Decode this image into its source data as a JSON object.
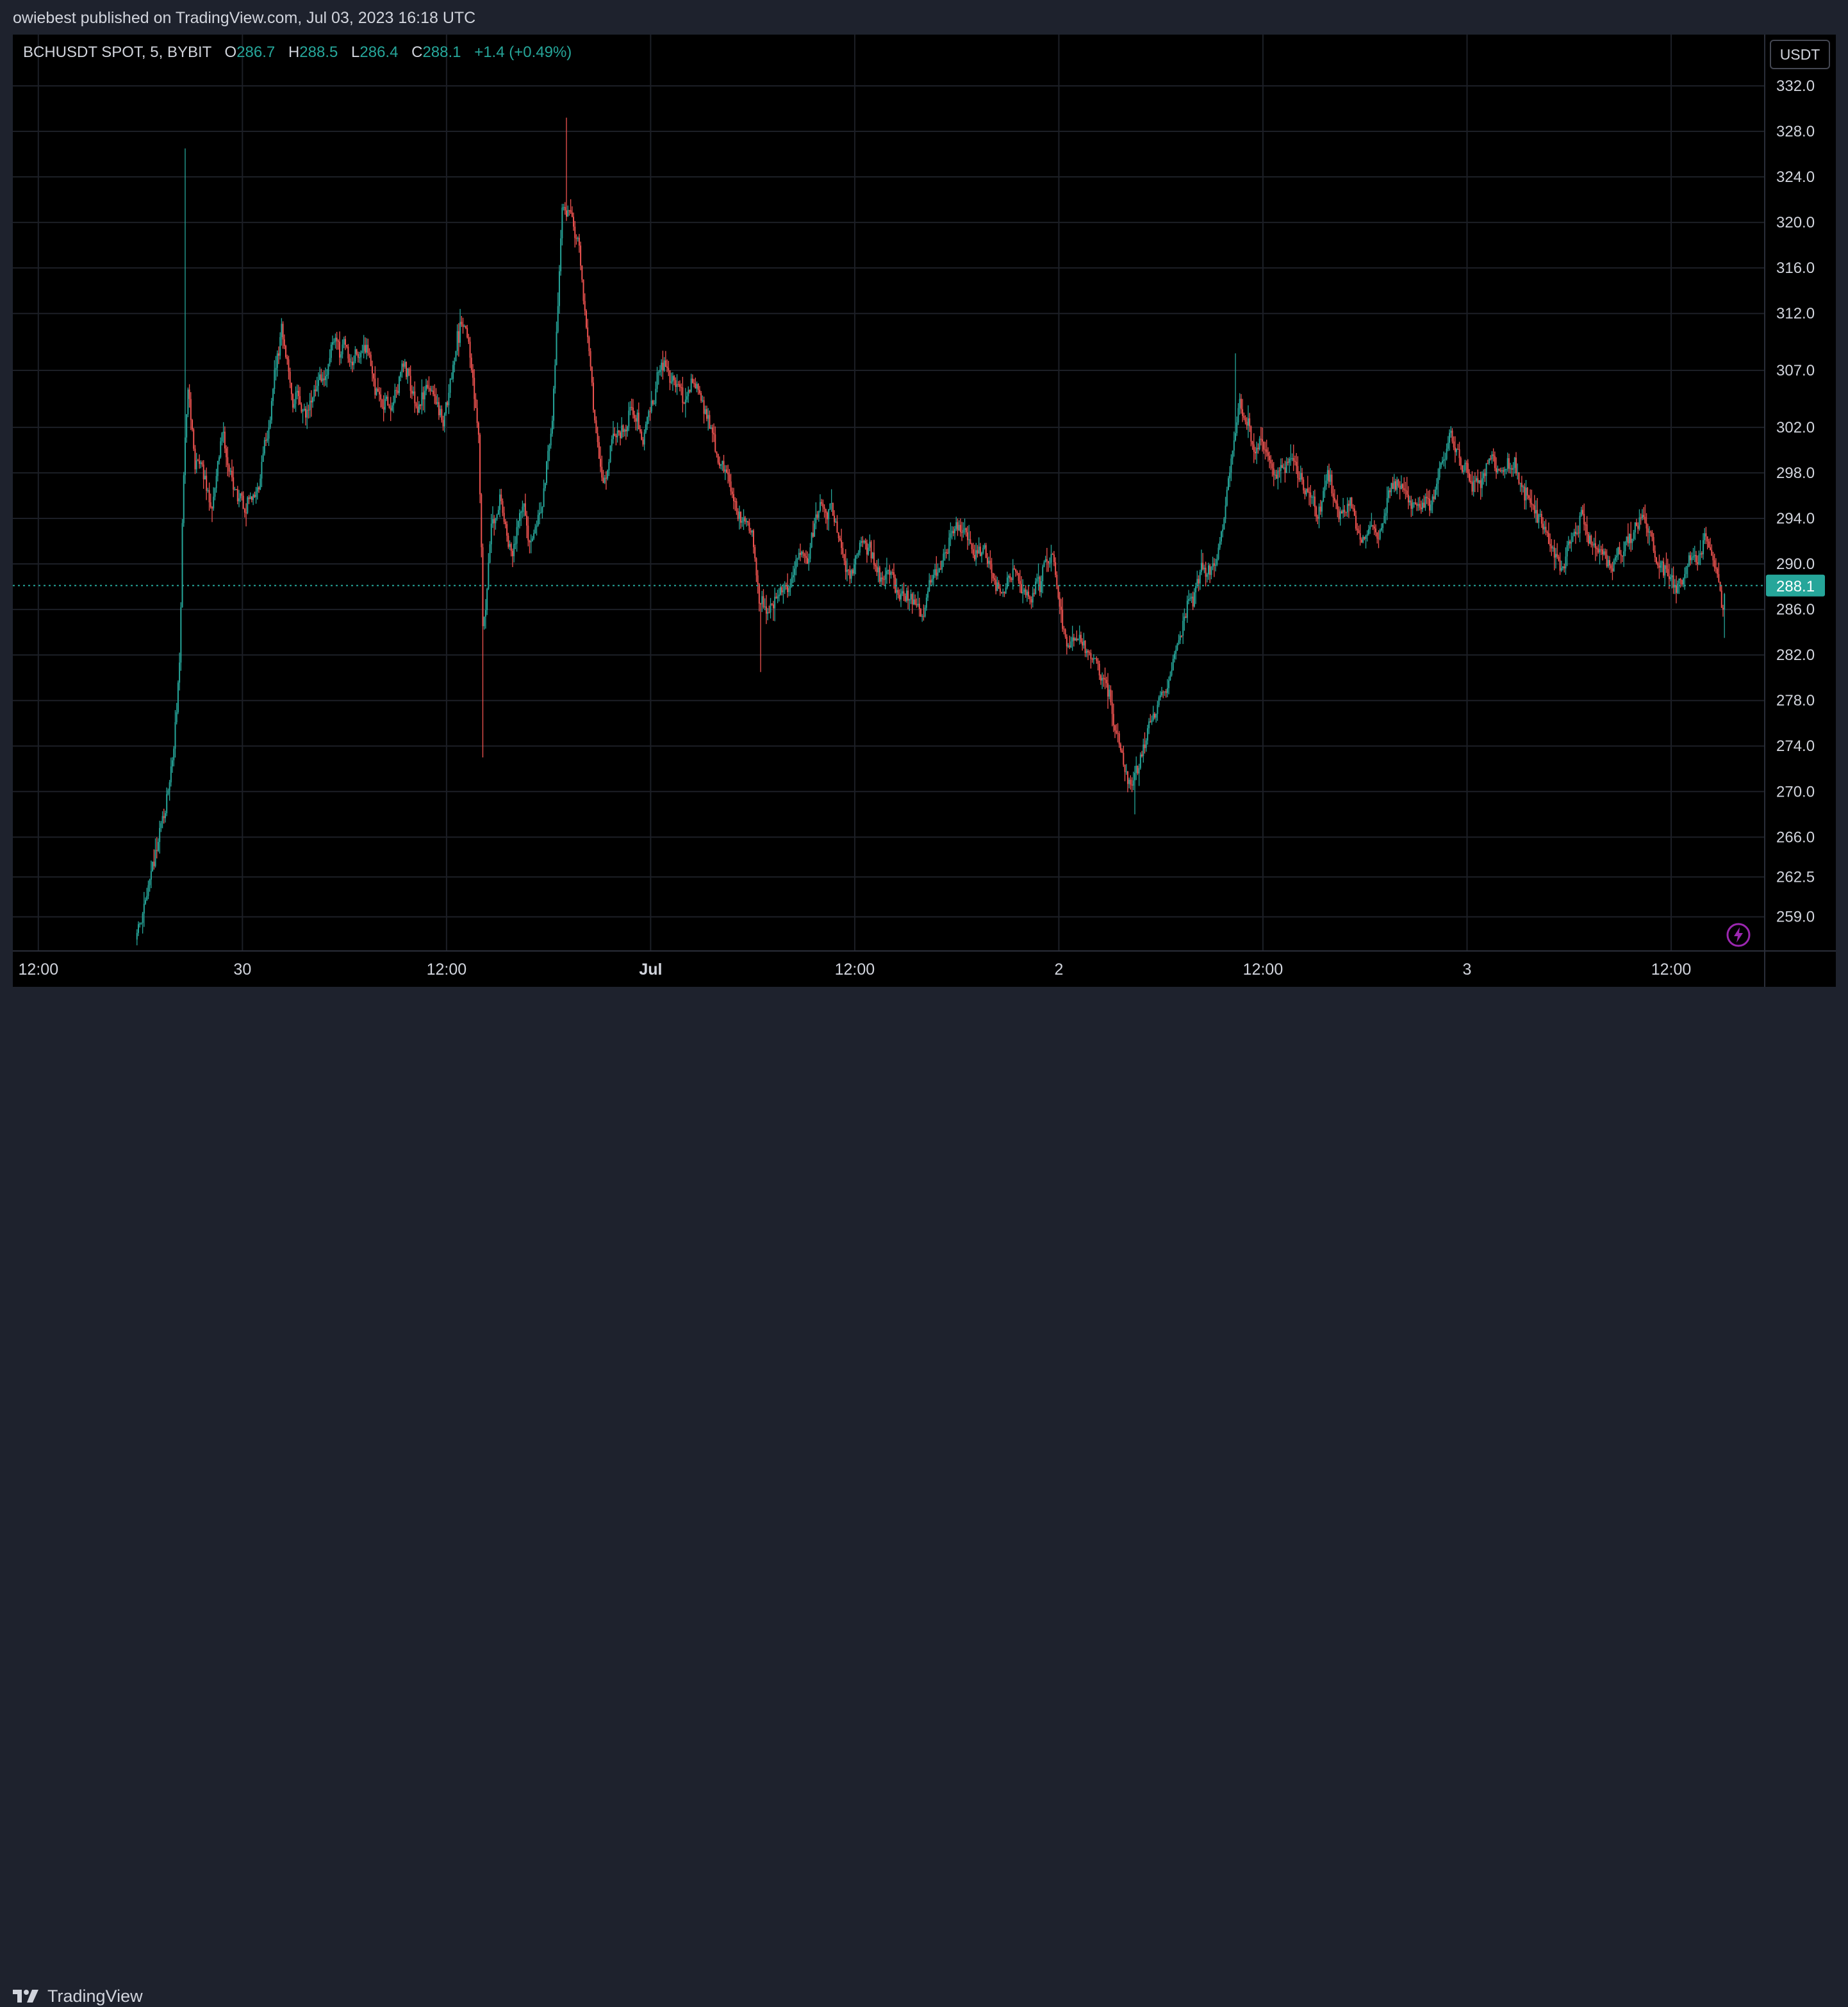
{
  "header": {
    "published": "owiebest published on TradingView.com, Jul 03, 2023 16:18 UTC"
  },
  "legend": {
    "symbol": "BCHUSDT SPOT, 5, BYBIT",
    "open_label": "O",
    "open": "286.7",
    "high_label": "H",
    "high": "288.5",
    "low_label": "L",
    "low": "286.4",
    "close_label": "C",
    "close": "288.1",
    "change": "+1.4 (+0.49%)"
  },
  "currency": "USDT",
  "footer": {
    "brand": "TradingView"
  },
  "colors": {
    "up": "#26a69a",
    "down": "#ef5350",
    "background": "#000000",
    "frame": "#1e222d",
    "grid": "#1c1f26",
    "text": "#d1d4dc"
  },
  "icons": {
    "logo": "tradingview-logo-icon",
    "flash": "lightning-icon"
  },
  "chart_data": {
    "type": "candlestick",
    "symbol": "BCHUSDT",
    "timeframe": "5",
    "exchange": "BYBIT",
    "last_price": "288.1",
    "last_price_value": 288.1,
    "y_ticks": [
      "332.0",
      "328.0",
      "324.0",
      "320.0",
      "316.0",
      "312.0",
      "307.0",
      "302.0",
      "298.0",
      "294.0",
      "290.0",
      "286.0",
      "282.0",
      "278.0",
      "274.0",
      "270.0",
      "266.0",
      "262.5",
      "259.0"
    ],
    "y_tick_values": [
      332.0,
      328.0,
      324.0,
      320.0,
      316.0,
      312.0,
      307.0,
      302.0,
      298.0,
      294.0,
      290.0,
      286.0,
      282.0,
      278.0,
      274.0,
      270.0,
      266.0,
      262.5,
      259.0
    ],
    "x_ticks": [
      {
        "label": "12:00",
        "t": 0.0,
        "bold": false
      },
      {
        "label": "30",
        "t": 12.0,
        "bold": false
      },
      {
        "label": "12:00",
        "t": 24.0,
        "bold": false
      },
      {
        "label": "Jul",
        "t": 36.0,
        "bold": true
      },
      {
        "label": "12:00",
        "t": 48.0,
        "bold": false
      },
      {
        "label": "2",
        "t": 60.0,
        "bold": false
      },
      {
        "label": "12:00",
        "t": 72.0,
        "bold": false
      },
      {
        "label": "3",
        "t": 84.0,
        "bold": false
      },
      {
        "label": "12:00",
        "t": 96.0,
        "bold": false
      }
    ],
    "x_range_hours": [
      -1.5,
      101.5
    ],
    "y_range": [
      256.0,
      336.5
    ],
    "path": [
      {
        "t": 5.8,
        "p": 257.0
      },
      {
        "t": 6.1,
        "p": 258.5
      },
      {
        "t": 6.5,
        "p": 261.5
      },
      {
        "t": 7.0,
        "p": 264.5
      },
      {
        "t": 7.4,
        "p": 267.0
      },
      {
        "t": 7.8,
        "p": 271.5
      },
      {
        "t": 8.1,
        "p": 276.5
      },
      {
        "t": 8.35,
        "p": 283.0
      },
      {
        "t": 8.5,
        "p": 296.0
      },
      {
        "t": 8.8,
        "p": 304.5
      },
      {
        "t": 9.2,
        "p": 298.5
      },
      {
        "t": 9.6,
        "p": 300.0
      },
      {
        "t": 10.2,
        "p": 296.5
      },
      {
        "t": 10.8,
        "p": 301.5
      },
      {
        "t": 11.5,
        "p": 298.0
      },
      {
        "t": 12.2,
        "p": 296.0
      },
      {
        "t": 13.0,
        "p": 298.5
      },
      {
        "t": 13.6,
        "p": 304.0
      },
      {
        "t": 14.3,
        "p": 311.5
      },
      {
        "t": 15.0,
        "p": 305.0
      },
      {
        "t": 15.8,
        "p": 303.0
      },
      {
        "t": 16.8,
        "p": 306.0
      },
      {
        "t": 17.5,
        "p": 310.0
      },
      {
        "t": 18.3,
        "p": 307.0
      },
      {
        "t": 19.0,
        "p": 309.0
      },
      {
        "t": 19.8,
        "p": 305.0
      },
      {
        "t": 20.6,
        "p": 303.5
      },
      {
        "t": 21.5,
        "p": 307.0
      },
      {
        "t": 22.3,
        "p": 304.5
      },
      {
        "t": 23.0,
        "p": 306.0
      },
      {
        "t": 23.8,
        "p": 303.0
      },
      {
        "t": 24.5,
        "p": 307.5
      },
      {
        "t": 25.0,
        "p": 310.5
      },
      {
        "t": 25.5,
        "p": 306.5
      },
      {
        "t": 25.9,
        "p": 301.0
      },
      {
        "t": 26.15,
        "p": 284.0
      },
      {
        "t": 26.6,
        "p": 293.0
      },
      {
        "t": 27.2,
        "p": 295.5
      },
      {
        "t": 27.8,
        "p": 292.0
      },
      {
        "t": 28.4,
        "p": 296.0
      },
      {
        "t": 29.0,
        "p": 292.5
      },
      {
        "t": 29.6,
        "p": 295.0
      },
      {
        "t": 30.2,
        "p": 303.0
      },
      {
        "t": 30.8,
        "p": 322.5
      },
      {
        "t": 31.3,
        "p": 320.0
      },
      {
        "t": 31.8,
        "p": 317.0
      },
      {
        "t": 32.3,
        "p": 309.0
      },
      {
        "t": 32.8,
        "p": 300.0
      },
      {
        "t": 33.2,
        "p": 296.0
      },
      {
        "t": 33.7,
        "p": 300.5
      },
      {
        "t": 34.3,
        "p": 301.5
      },
      {
        "t": 34.9,
        "p": 303.0
      },
      {
        "t": 35.5,
        "p": 301.0
      },
      {
        "t": 36.1,
        "p": 305.0
      },
      {
        "t": 36.7,
        "p": 308.5
      },
      {
        "t": 37.3,
        "p": 307.0
      },
      {
        "t": 37.9,
        "p": 305.5
      },
      {
        "t": 38.5,
        "p": 306.0
      },
      {
        "t": 39.1,
        "p": 304.0
      },
      {
        "t": 39.7,
        "p": 301.5
      },
      {
        "t": 40.3,
        "p": 298.0
      },
      {
        "t": 40.9,
        "p": 296.0
      },
      {
        "t": 41.5,
        "p": 294.0
      },
      {
        "t": 42.0,
        "p": 293.0
      },
      {
        "t": 42.4,
        "p": 286.0
      },
      {
        "t": 42.9,
        "p": 284.5
      },
      {
        "t": 43.5,
        "p": 286.5
      },
      {
        "t": 44.1,
        "p": 287.5
      },
      {
        "t": 44.7,
        "p": 290.0
      },
      {
        "t": 45.3,
        "p": 289.5
      },
      {
        "t": 45.9,
        "p": 294.5
      },
      {
        "t": 46.5,
        "p": 295.0
      },
      {
        "t": 47.1,
        "p": 293.5
      },
      {
        "t": 47.7,
        "p": 290.0
      },
      {
        "t": 48.3,
        "p": 291.5
      },
      {
        "t": 48.9,
        "p": 292.5
      },
      {
        "t": 49.5,
        "p": 289.0
      },
      {
        "t": 50.1,
        "p": 288.0
      },
      {
        "t": 50.7,
        "p": 286.5
      },
      {
        "t": 51.3,
        "p": 287.5
      },
      {
        "t": 51.9,
        "p": 286.5
      },
      {
        "t": 52.5,
        "p": 289.0
      },
      {
        "t": 53.1,
        "p": 288.5
      },
      {
        "t": 53.7,
        "p": 291.5
      },
      {
        "t": 54.3,
        "p": 292.0
      },
      {
        "t": 54.9,
        "p": 291.0
      },
      {
        "t": 55.5,
        "p": 290.5
      },
      {
        "t": 56.1,
        "p": 289.5
      },
      {
        "t": 56.7,
        "p": 289.0
      },
      {
        "t": 57.3,
        "p": 290.0
      },
      {
        "t": 57.9,
        "p": 289.0
      },
      {
        "t": 58.5,
        "p": 288.5
      },
      {
        "t": 59.1,
        "p": 290.0
      },
      {
        "t": 59.7,
        "p": 291.0
      },
      {
        "t": 60.1,
        "p": 287.0
      },
      {
        "t": 60.5,
        "p": 283.5
      },
      {
        "t": 61.0,
        "p": 285.0
      },
      {
        "t": 61.6,
        "p": 283.5
      },
      {
        "t": 62.2,
        "p": 281.0
      },
      {
        "t": 62.8,
        "p": 279.5
      },
      {
        "t": 63.4,
        "p": 275.5
      },
      {
        "t": 63.9,
        "p": 272.5
      },
      {
        "t": 64.3,
        "p": 271.0
      },
      {
        "t": 64.8,
        "p": 272.5
      },
      {
        "t": 65.4,
        "p": 275.5
      },
      {
        "t": 66.0,
        "p": 277.5
      },
      {
        "t": 66.6,
        "p": 281.0
      },
      {
        "t": 67.2,
        "p": 284.5
      },
      {
        "t": 67.8,
        "p": 287.5
      },
      {
        "t": 68.4,
        "p": 289.0
      },
      {
        "t": 69.0,
        "p": 288.5
      },
      {
        "t": 69.6,
        "p": 291.5
      },
      {
        "t": 70.1,
        "p": 297.5
      },
      {
        "t": 70.6,
        "p": 304.0
      },
      {
        "t": 71.1,
        "p": 302.5
      },
      {
        "t": 71.6,
        "p": 299.5
      },
      {
        "t": 72.2,
        "p": 301.0
      },
      {
        "t": 72.8,
        "p": 299.0
      },
      {
        "t": 73.4,
        "p": 300.0
      },
      {
        "t": 74.0,
        "p": 298.5
      },
      {
        "t": 74.6,
        "p": 297.0
      },
      {
        "t": 75.2,
        "p": 294.5
      },
      {
        "t": 75.8,
        "p": 297.0
      },
      {
        "t": 76.4,
        "p": 294.0
      },
      {
        "t": 77.0,
        "p": 295.5
      },
      {
        "t": 77.6,
        "p": 292.5
      },
      {
        "t": 78.2,
        "p": 293.0
      },
      {
        "t": 78.8,
        "p": 292.0
      },
      {
        "t": 79.4,
        "p": 295.5
      },
      {
        "t": 80.0,
        "p": 296.0
      },
      {
        "t": 80.6,
        "p": 294.5
      },
      {
        "t": 81.2,
        "p": 294.0
      },
      {
        "t": 81.8,
        "p": 295.0
      },
      {
        "t": 82.4,
        "p": 298.0
      },
      {
        "t": 83.0,
        "p": 300.5
      },
      {
        "t": 83.6,
        "p": 298.5
      },
      {
        "t": 84.2,
        "p": 297.0
      },
      {
        "t": 84.8,
        "p": 296.5
      },
      {
        "t": 85.4,
        "p": 300.0
      },
      {
        "t": 86.0,
        "p": 299.5
      },
      {
        "t": 86.6,
        "p": 298.5
      },
      {
        "t": 87.2,
        "p": 297.5
      },
      {
        "t": 87.8,
        "p": 296.5
      },
      {
        "t": 88.4,
        "p": 295.5
      },
      {
        "t": 89.0,
        "p": 293.5
      },
      {
        "t": 89.6,
        "p": 291.5
      },
      {
        "t": 90.2,
        "p": 292.5
      },
      {
        "t": 90.8,
        "p": 294.5
      },
      {
        "t": 91.4,
        "p": 292.0
      },
      {
        "t": 92.0,
        "p": 291.0
      },
      {
        "t": 92.6,
        "p": 289.5
      },
      {
        "t": 93.2,
        "p": 290.5
      },
      {
        "t": 93.8,
        "p": 292.5
      },
      {
        "t": 94.4,
        "p": 294.5
      },
      {
        "t": 95.0,
        "p": 292.5
      },
      {
        "t": 95.6,
        "p": 290.0
      },
      {
        "t": 96.2,
        "p": 288.5
      },
      {
        "t": 96.8,
        "p": 289.0
      },
      {
        "t": 97.4,
        "p": 291.0
      },
      {
        "t": 98.0,
        "p": 293.0
      },
      {
        "t": 98.6,
        "p": 290.5
      },
      {
        "t": 99.0,
        "p": 286.5
      },
      {
        "t": 99.2,
        "p": 288.1
      }
    ],
    "extremes": [
      {
        "t": 8.65,
        "p": 326.5
      },
      {
        "t": 26.1,
        "p": 273.0
      },
      {
        "t": 31.05,
        "p": 329.2
      },
      {
        "t": 42.45,
        "p": 280.5
      },
      {
        "t": 64.45,
        "p": 268.0
      },
      {
        "t": 70.4,
        "p": 308.5
      },
      {
        "t": 99.1,
        "p": 283.5
      }
    ]
  }
}
